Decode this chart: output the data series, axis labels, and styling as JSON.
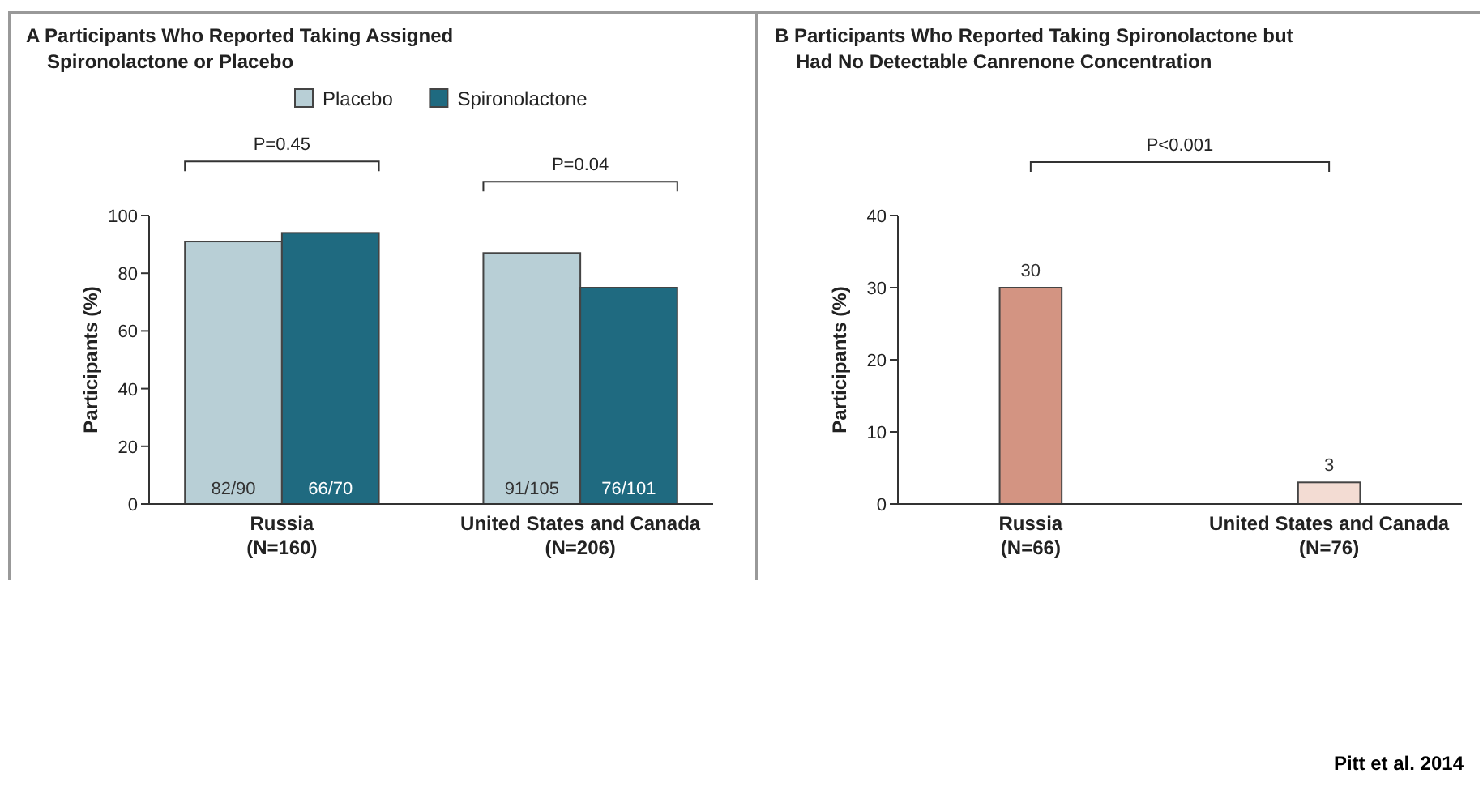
{
  "chart_data": [
    {
      "type": "bar",
      "title": "A Participants Who Reported Taking Assigned\nSpironolactone or Placebo",
      "ylabel": "Participants (%)",
      "categories": [
        "Russia\n(N=160)",
        "United States and Canada\n(N=206)"
      ],
      "series": [
        {
          "name": "Placebo",
          "color": "#b8cfd6",
          "values": [
            91,
            87
          ],
          "value_labels": [
            "82/90",
            "91/105"
          ]
        },
        {
          "name": "Spironolactone",
          "color": "#1f6a80",
          "values": [
            94,
            75
          ],
          "value_labels": [
            "66/70",
            "76/101"
          ]
        }
      ],
      "ylim": [
        0,
        100
      ],
      "yticks": [
        0,
        20,
        40,
        60,
        80,
        100
      ],
      "grid": false,
      "legend": "top",
      "annotations": [
        "P=0.45",
        "P=0.04",
        "Pitt et al. 2014"
      ]
    },
    {
      "type": "bar",
      "title": "B Participants Who Reported Taking Spironolactone but\nHad No Detectable Canrenone Concentration",
      "ylabel": "Participants (%)",
      "categories": [
        "Russia\n(N=66)",
        "United States and Canada\n(N=76)"
      ],
      "values": [
        30,
        3
      ],
      "colors": [
        "#d39482",
        "#f3dcd3"
      ],
      "data_labels": true,
      "ylim": [
        0,
        40
      ],
      "yticks": [
        0,
        10,
        20,
        30,
        40
      ],
      "grid": false,
      "annotations": [
        "P<0.001"
      ]
    }
  ]
}
